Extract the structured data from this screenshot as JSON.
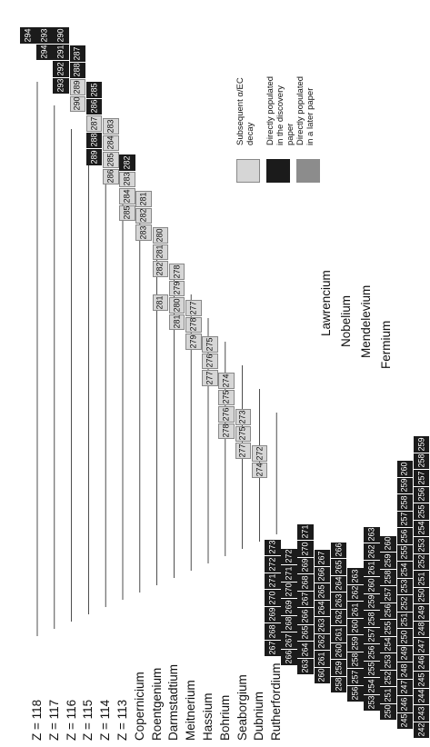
{
  "row_labels": [
    {
      "key": "z118",
      "text": "Z = 118",
      "col": 0
    },
    {
      "key": "z117",
      "text": "Z = 117",
      "col": 1
    },
    {
      "key": "z116",
      "text": "Z = 116",
      "col": 2
    },
    {
      "key": "z115",
      "text": "Z = 115",
      "col": 3
    },
    {
      "key": "z114",
      "text": "Z = 114",
      "col": 4
    },
    {
      "key": "z113",
      "text": "Z = 113",
      "col": 5
    },
    {
      "key": "copernicium",
      "text": "Copernicium",
      "col": 6
    },
    {
      "key": "roentgenium",
      "text": "Roentgenium",
      "col": 7
    },
    {
      "key": "darmstadtium",
      "text": "Darmstadtium",
      "col": 8
    },
    {
      "key": "meitnerium",
      "text": "Meitnerium",
      "col": 9
    },
    {
      "key": "hassium",
      "text": "Hassium",
      "col": 10
    },
    {
      "key": "bohrium",
      "text": "Bohrium",
      "col": 11
    },
    {
      "key": "seaborgium",
      "text": "Seaborgium",
      "col": 12
    },
    {
      "key": "dubnium",
      "text": "Dubnium",
      "col": 13
    },
    {
      "key": "rutherfordium",
      "text": "Rutherfordium",
      "col": 14
    }
  ],
  "element_labels": [
    {
      "key": "lawrencium",
      "text": "Lawrencium"
    },
    {
      "key": "nobelium",
      "text": "Nobelium"
    },
    {
      "key": "mendelevium",
      "text": "Mendelevium"
    },
    {
      "key": "fermium",
      "text": "Fermium"
    }
  ],
  "legend": [
    {
      "key": "subsequent",
      "text": "Subsequent α/EC decay",
      "shade": "light"
    },
    {
      "key": "direct",
      "text": "Directly populated in the discovery paper",
      "shade": "black"
    },
    {
      "key": "later",
      "text": "Directly populated in a later paper",
      "shade": "dark"
    }
  ],
  "colors": {
    "black": "#1b1b1b",
    "light": "#d6d6d6",
    "dark": "#8c8c8c"
  },
  "rows": [
    {
      "col": 0,
      "cells": [
        {
          "a": 294,
          "s": "k"
        }
      ]
    },
    {
      "col": 1,
      "cells": [
        {
          "a": 293,
          "s": "k"
        },
        {
          "a": 294,
          "s": "k"
        }
      ]
    },
    {
      "col": 2,
      "cells": [
        {
          "a": 290,
          "s": "k"
        },
        {
          "a": 291,
          "s": "k"
        },
        {
          "a": 292,
          "s": "k"
        },
        {
          "a": 293,
          "s": "k"
        }
      ]
    },
    {
      "col": 3,
      "cells": [
        {
          "a": 287,
          "s": "k"
        },
        {
          "a": 288,
          "s": "k"
        },
        {
          "a": 289,
          "s": "l"
        },
        {
          "a": 290,
          "s": "l"
        }
      ]
    },
    {
      "col": 4,
      "cells": [
        {
          "a": 285,
          "s": "k"
        },
        {
          "a": 286,
          "s": "k"
        },
        {
          "a": 287,
          "s": "l"
        },
        {
          "a": 288,
          "s": "k"
        },
        {
          "a": 289,
          "s": "k"
        }
      ]
    },
    {
      "col": 5,
      "cells": [
        {
          "a": 283,
          "s": "l"
        },
        {
          "a": 284,
          "s": "l"
        },
        {
          "a": 285,
          "s": "l"
        },
        {
          "a": 286,
          "s": "l"
        }
      ]
    },
    {
      "col": 6,
      "cells": [
        {
          "a": 282,
          "s": "k"
        },
        {
          "a": 283,
          "s": "l"
        },
        {
          "a": 284,
          "s": "l"
        },
        {
          "a": 285,
          "s": "l"
        }
      ]
    },
    {
      "col": 7,
      "cells": [
        {
          "a": 281,
          "s": "l"
        },
        {
          "a": 282,
          "s": "l"
        },
        {
          "a": 283,
          "s": "l"
        }
      ]
    },
    {
      "col": 8,
      "cells": [
        {
          "a": 280,
          "s": "l"
        },
        {
          "a": 281,
          "s": "l"
        },
        {
          "a": 282,
          "s": "l"
        },
        {
          "a": 281,
          "s": "l",
          "gap": true
        }
      ]
    },
    {
      "col": 9,
      "cells": [
        {
          "a": 278,
          "s": "l"
        },
        {
          "a": 279,
          "s": "l"
        },
        {
          "a": 280,
          "s": "l"
        },
        {
          "a": 281,
          "s": "l"
        }
      ]
    },
    {
      "col": 10,
      "cells": [
        {
          "a": 277,
          "s": "l"
        },
        {
          "a": 278,
          "s": "l"
        },
        {
          "a": 279,
          "s": "l"
        }
      ]
    },
    {
      "col": 11,
      "cells": [
        {
          "a": 275,
          "s": "l"
        },
        {
          "a": 276,
          "s": "l"
        },
        {
          "a": 277,
          "s": "l"
        }
      ]
    },
    {
      "col": 12,
      "cells": [
        {
          "a": 274,
          "s": "l"
        },
        {
          "a": 275,
          "s": "l"
        },
        {
          "a": 276,
          "s": "l"
        },
        {
          "a": 278,
          "s": "l"
        }
      ]
    },
    {
      "col": 13,
      "cells": [
        {
          "a": 273,
          "s": "l"
        },
        {
          "a": 275,
          "s": "l"
        },
        {
          "a": 277,
          "s": "l"
        }
      ]
    },
    {
      "col": 14,
      "cells": [
        {
          "a": 272,
          "s": "l"
        },
        {
          "a": 274,
          "s": "l"
        }
      ]
    }
  ],
  "lower_rows": [
    {
      "col": 15,
      "cells": [
        {
          "a": 278,
          "s": "k"
        },
        {
          "a": 277,
          "s": "k"
        }
      ]
    },
    {
      "col": 16,
      "cells": [
        {
          "a": 274,
          "s": "l"
        },
        {
          "a": 273,
          "s": "k"
        }
      ]
    },
    {
      "col": 17,
      "cells": [
        {
          "a": 272,
          "s": "k"
        },
        {
          "a": 271,
          "s": "k"
        },
        {
          "a": 270,
          "s": "k"
        },
        {
          "a": 269,
          "s": "k"
        }
      ]
    },
    {
      "col": 18,
      "cells": [
        {
          "a": 271,
          "s": "k"
        },
        {
          "a": 270,
          "s": "k"
        },
        {
          "a": 269,
          "s": "d"
        },
        {
          "a": 268,
          "s": "k"
        },
        {
          "a": 267,
          "s": "k"
        }
      ]
    },
    {
      "col": 19,
      "cells": [
        {
          "a": 270,
          "s": "l"
        },
        {
          "a": 269,
          "s": "l"
        },
        {
          "a": 268,
          "s": "l"
        },
        {
          "a": 267,
          "s": "l"
        }
      ]
    },
    {
      "col": 20,
      "cells": [
        {
          "a": 268,
          "s": "l"
        },
        {
          "a": 267,
          "s": "l"
        },
        {
          "a": 266,
          "s": "l"
        },
        {
          "a": 265,
          "s": "k"
        }
      ]
    },
    {
      "col": 21,
      "cells": [
        {
          "a": 267,
          "s": "l"
        },
        {
          "a": 266,
          "s": "k"
        },
        {
          "a": 265,
          "s": "k"
        },
        {
          "a": 264,
          "s": "k"
        }
      ]
    },
    {
      "col": 22,
      "cells": [
        {
          "a": 265,
          "s": "l"
        },
        {
          "a": 264,
          "s": "k"
        },
        {
          "a": 263,
          "s": "k"
        },
        {
          "a": 262,
          "s": "l"
        }
      ]
    },
    {
      "col": 23,
      "cells": [
        {
          "a": 263,
          "s": "l"
        },
        {
          "a": 262,
          "s": "k"
        },
        {
          "a": 261,
          "s": "k"
        },
        {
          "a": 260,
          "s": "k"
        }
      ]
    }
  ],
  "bottom_rows": [
    {
      "text": "242 243 244 245 246 247 248 249 250 251 252 253 254 255 256 257 258 259"
    },
    {
      "text": "245 246 247 248 249 250 251 252 253 254 255 256 257 258 259 260"
    },
    {
      "text": "250 251 252 253 254 255 256 257 258 259 260"
    },
    {
      "text": "253 254 255 256 257 258 259 260 261 262 263"
    },
    {
      "text": "256 257 258 259 260 261 262 263"
    },
    {
      "text": "258 259 260 261 262 263 264 265 266"
    },
    {
      "text": "260 261 262 263 264 265 266 267"
    },
    {
      "text": "263 264 265 266 267 268 269 270 271"
    },
    {
      "text": "266 267 268 269 270 271 272"
    },
    {
      "text": "267 268 269 270 271 272 273"
    }
  ]
}
